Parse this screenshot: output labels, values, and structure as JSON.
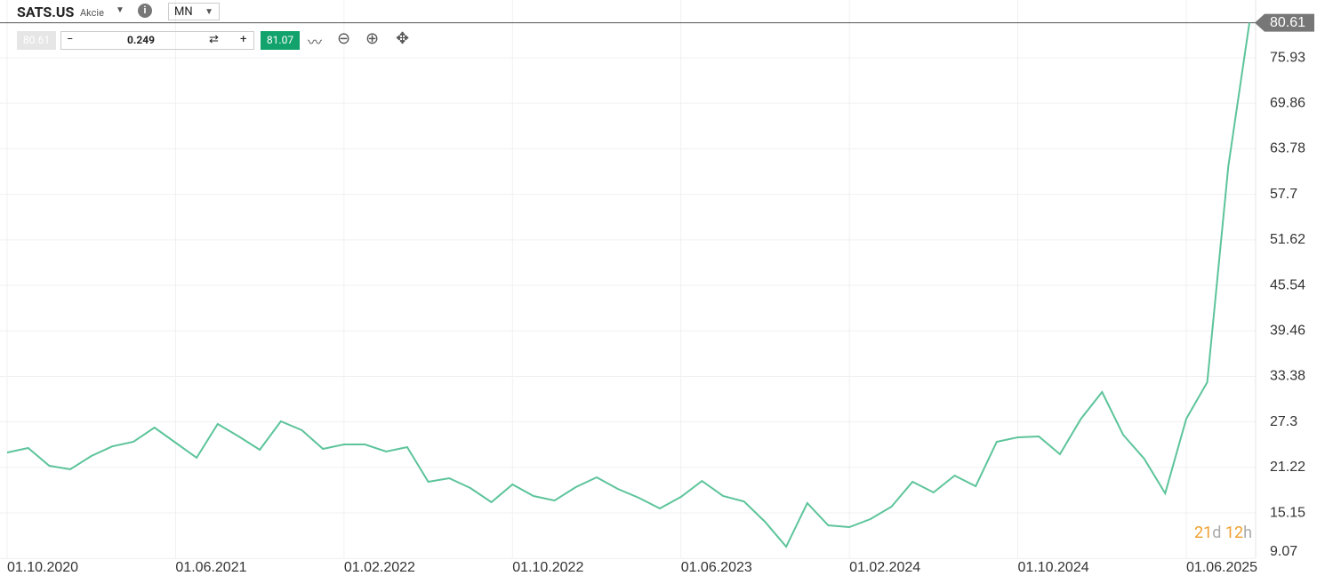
{
  "toolbar": {
    "symbol": "SATS.US",
    "kind": "Akcie",
    "period": "MN",
    "bid": "80.61",
    "step": "0.249",
    "ask": "81.07",
    "minus": "−",
    "plus": "+"
  },
  "countdown": {
    "days": "21",
    "days_unit": "d",
    "hours": "12",
    "hours_unit": "h"
  },
  "chart_data": {
    "type": "line",
    "color": "#5cc49a",
    "grid": true,
    "last_price": 80.61,
    "categories": [
      "01.10.2020",
      null,
      null,
      null,
      null,
      null,
      null,
      null,
      "01.06.2021",
      null,
      null,
      null,
      null,
      null,
      null,
      null,
      "01.02.2022",
      null,
      null,
      null,
      null,
      null,
      null,
      null,
      "01.10.2022",
      null,
      null,
      null,
      null,
      null,
      null,
      null,
      "01.06.2023",
      null,
      null,
      null,
      null,
      null,
      null,
      null,
      "01.02.2024",
      null,
      null,
      null,
      null,
      null,
      null,
      null,
      "01.10.2024",
      null,
      null,
      null,
      null,
      null,
      null,
      null,
      "01.06.2025",
      null,
      null,
      null
    ],
    "values": [
      23.22,
      23.82,
      21.44,
      20.97,
      22.75,
      24.05,
      24.65,
      26.55,
      24.53,
      22.51,
      27.02,
      25.36,
      23.58,
      27.38,
      26.19,
      23.7,
      24.29,
      24.29,
      23.34,
      23.94,
      19.31,
      19.78,
      18.48,
      16.58,
      18.95,
      17.41,
      16.81,
      18.59,
      19.9,
      18.36,
      17.17,
      15.75,
      17.29,
      19.42,
      17.41,
      16.69,
      13.96,
      10.64,
      16.46,
      13.49,
      13.25,
      14.32,
      15.98,
      19.31,
      17.88,
      20.14,
      18.71,
      24.65,
      25.24,
      25.36,
      22.99,
      27.73,
      31.3,
      25.6,
      22.39,
      17.76,
      27.73,
      32.6,
      61.45,
      80.61
    ],
    "ylim": [
      9.1,
      83.65
    ],
    "yticks": [
      9.07,
      15.15,
      21.22,
      27.3,
      33.38,
      39.46,
      45.54,
      51.62,
      57.7,
      63.78,
      69.86,
      75.93
    ]
  }
}
